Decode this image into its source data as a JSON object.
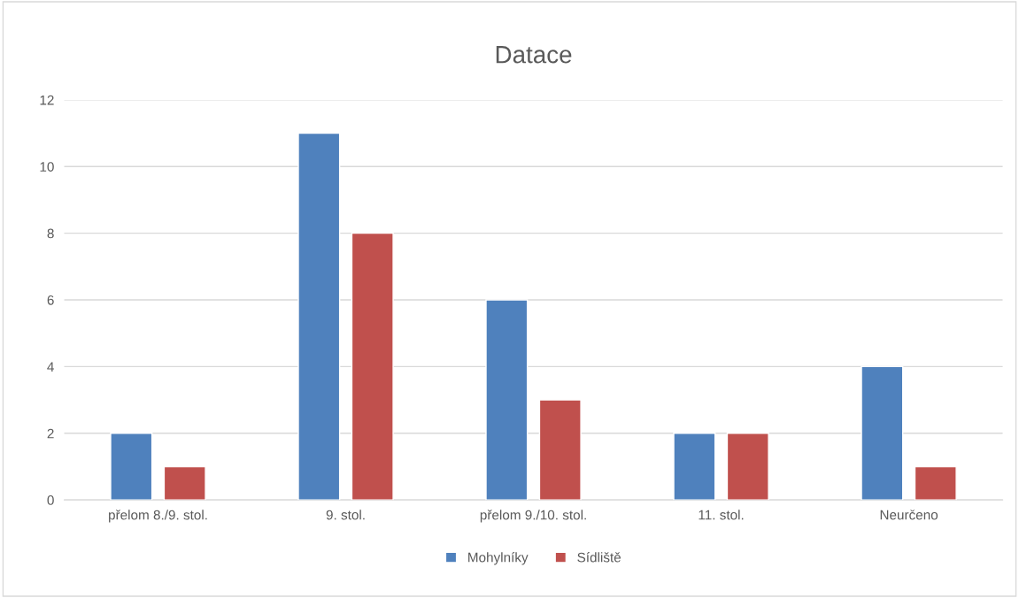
{
  "chart_data": {
    "type": "bar",
    "title": "Datace",
    "categories": [
      "přelom 8./9. stol.",
      "9. stol.",
      "přelom 9./10. stol.",
      "11. stol.",
      "Neurčeno"
    ],
    "series": [
      {
        "name": "Mohylníky",
        "color": "#4f81bd",
        "values": [
          2,
          11,
          6,
          2,
          4
        ]
      },
      {
        "name": "Sídliště",
        "color": "#c0504d",
        "values": [
          1,
          8,
          3,
          2,
          1
        ]
      }
    ],
    "ylim": [
      0,
      12
    ],
    "yticks": [
      0,
      2,
      4,
      6,
      8,
      10,
      12
    ],
    "grid": "y",
    "legend": "bottom"
  }
}
